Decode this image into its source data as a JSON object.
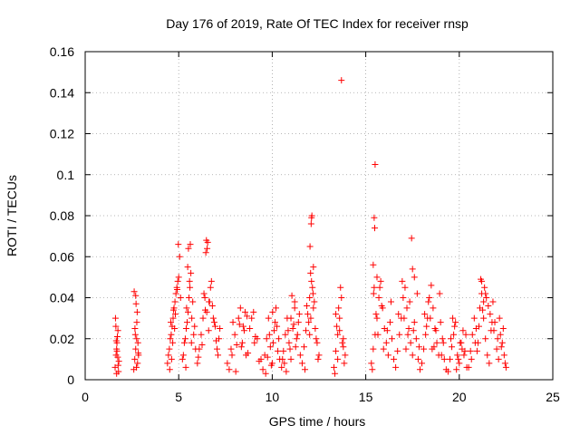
{
  "chart_data": {
    "type": "scatter",
    "title": "Day 176 of 2019, Rate Of TEC Index for receiver rnsp",
    "xlabel": "GPS time / hours",
    "ylabel": "ROTI / TECUs",
    "xlim": [
      0,
      25
    ],
    "ylim": [
      0,
      0.16
    ],
    "xticks": [
      0,
      5,
      10,
      15,
      20,
      25
    ],
    "xtick_labels": [
      "0",
      "5",
      "10",
      "15",
      "20",
      "25"
    ],
    "yticks": [
      0,
      0.02,
      0.04,
      0.06,
      0.08,
      0.1,
      0.12,
      0.14,
      0.16
    ],
    "ytick_labels": [
      "0",
      "0.02",
      "0.04",
      "0.06",
      "0.08",
      "0.1",
      "0.12",
      "0.14",
      "0.16"
    ],
    "grid": true,
    "marker": "+",
    "color": "#ff0000",
    "series": [
      {
        "name": "ROTI",
        "x": [
          1.6,
          1.65,
          1.7,
          1.75,
          1.8,
          1.62,
          1.68,
          1.72,
          1.78,
          1.64,
          1.74,
          1.66,
          1.76,
          1.7,
          1.68,
          2.6,
          2.65,
          2.7,
          2.75,
          2.8,
          2.85,
          2.62,
          2.72,
          2.78,
          2.66,
          2.82,
          2.7,
          2.74,
          2.68,
          2.76,
          2.84,
          4.4,
          4.5,
          4.6,
          4.7,
          4.8,
          4.9,
          5.0,
          5.1,
          4.45,
          4.55,
          4.65,
          4.75,
          4.85,
          4.95,
          5.05,
          4.52,
          4.68,
          4.82,
          4.98,
          4.62,
          4.78,
          4.92,
          4.58,
          4.72,
          5.2,
          5.3,
          5.4,
          5.5,
          5.6,
          5.7,
          5.8,
          5.9,
          5.25,
          5.35,
          5.45,
          5.55,
          5.65,
          5.75,
          5.85,
          5.52,
          5.62,
          5.48,
          5.42,
          5.58,
          5.38,
          5.68,
          6.0,
          6.1,
          6.2,
          6.3,
          6.4,
          6.5,
          6.6,
          6.7,
          6.8,
          6.9,
          7.0,
          7.1,
          7.2,
          6.05,
          6.25,
          6.45,
          6.65,
          6.85,
          7.05,
          6.55,
          6.48,
          6.52,
          6.35,
          6.75,
          6.95,
          7.15,
          6.42,
          6.62,
          7.6,
          7.8,
          8.0,
          8.2,
          8.4,
          8.6,
          8.8,
          9.0,
          9.2,
          9.4,
          7.7,
          7.9,
          8.1,
          8.3,
          8.5,
          8.7,
          8.9,
          9.1,
          9.3,
          7.85,
          8.25,
          8.65,
          9.05,
          8.45,
          8.05,
          8.55,
          8.35,
          9.5,
          9.6,
          9.7,
          9.8,
          9.9,
          10.0,
          10.1,
          10.2,
          10.3,
          10.4,
          9.65,
          9.85,
          10.05,
          10.25,
          9.75,
          9.95,
          10.15,
          10.35,
          10.02,
          10.5,
          10.6,
          10.7,
          10.8,
          10.9,
          11.0,
          11.1,
          11.2,
          11.3,
          11.4,
          11.5,
          10.65,
          10.85,
          11.05,
          11.25,
          11.45,
          10.75,
          10.95,
          11.15,
          11.35,
          11.0,
          11.2,
          10.55,
          11.6,
          11.7,
          11.8,
          11.9,
          12.0,
          12.1,
          12.2,
          12.3,
          12.4,
          12.5,
          11.75,
          11.95,
          12.15,
          12.35,
          12.05,
          12.1,
          12.12,
          12.08,
          11.85,
          12.25,
          12.45,
          12.02,
          12.18,
          12.0,
          12.06,
          12.2,
          13.3,
          13.4,
          13.5,
          13.6,
          13.7,
          13.8,
          13.9,
          13.35,
          13.45,
          13.55,
          13.65,
          13.75,
          13.85,
          13.7,
          13.6,
          13.5,
          13.4,
          13.8,
          15.3,
          15.4,
          15.5,
          15.6,
          15.7,
          15.8,
          15.9,
          16.0,
          16.1,
          16.2,
          16.3,
          16.4,
          16.5,
          15.35,
          15.55,
          15.75,
          15.95,
          16.15,
          16.35,
          15.45,
          15.65,
          15.85,
          15.5,
          15.45,
          15.48,
          15.4,
          15.6,
          15.42,
          16.6,
          16.7,
          16.8,
          16.9,
          17.0,
          17.1,
          17.2,
          17.3,
          17.4,
          17.5,
          17.6,
          17.7,
          17.8,
          17.9,
          16.75,
          16.95,
          17.15,
          17.35,
          17.55,
          17.75,
          17.45,
          17.5,
          17.6,
          17.25,
          17.85,
          17.05,
          18.0,
          18.1,
          18.2,
          18.3,
          18.4,
          18.5,
          18.6,
          18.7,
          18.8,
          18.9,
          19.0,
          19.1,
          19.2,
          19.3,
          18.15,
          18.35,
          18.55,
          18.75,
          18.95,
          19.15,
          18.45,
          18.65,
          18.25,
          19.05,
          19.4,
          19.5,
          19.6,
          19.7,
          19.8,
          19.9,
          20.0,
          20.1,
          20.2,
          20.3,
          20.4,
          19.55,
          19.75,
          19.95,
          20.15,
          20.35,
          19.65,
          19.85,
          20.05,
          20.25,
          20.5,
          20.6,
          20.7,
          20.8,
          20.9,
          21.0,
          21.1,
          21.2,
          21.3,
          21.4,
          21.5,
          21.6,
          21.7,
          21.8,
          21.9,
          22.0,
          22.1,
          22.2,
          22.3,
          22.4,
          22.5,
          20.65,
          20.85,
          21.05,
          21.25,
          21.45,
          21.65,
          21.85,
          22.05,
          22.25,
          22.45,
          21.15,
          21.35,
          21.2,
          21.4,
          21.3,
          21.55,
          22.15,
          22.35,
          21.75,
          20.95
        ],
        "y": [
          0.006,
          0.012,
          0.018,
          0.024,
          0.009,
          0.03,
          0.015,
          0.021,
          0.004,
          0.026,
          0.011,
          0.019,
          0.007,
          0.014,
          0.003,
          0.005,
          0.01,
          0.015,
          0.02,
          0.008,
          0.012,
          0.043,
          0.037,
          0.033,
          0.025,
          0.018,
          0.041,
          0.006,
          0.022,
          0.028,
          0.013,
          0.008,
          0.015,
          0.022,
          0.03,
          0.038,
          0.045,
          0.05,
          0.04,
          0.012,
          0.02,
          0.026,
          0.035,
          0.042,
          0.048,
          0.06,
          0.005,
          0.018,
          0.032,
          0.066,
          0.01,
          0.025,
          0.044,
          0.028,
          0.034,
          0.01,
          0.018,
          0.025,
          0.033,
          0.045,
          0.03,
          0.022,
          0.015,
          0.012,
          0.02,
          0.028,
          0.04,
          0.052,
          0.038,
          0.026,
          0.064,
          0.066,
          0.055,
          0.035,
          0.048,
          0.006,
          0.018,
          0.008,
          0.015,
          0.022,
          0.03,
          0.04,
          0.033,
          0.024,
          0.045,
          0.036,
          0.028,
          0.019,
          0.012,
          0.025,
          0.011,
          0.017,
          0.062,
          0.038,
          0.03,
          0.015,
          0.067,
          0.068,
          0.064,
          0.042,
          0.048,
          0.026,
          0.02,
          0.034,
          0.038,
          0.008,
          0.015,
          0.022,
          0.03,
          0.018,
          0.012,
          0.025,
          0.033,
          0.02,
          0.01,
          0.005,
          0.028,
          0.017,
          0.035,
          0.024,
          0.013,
          0.03,
          0.021,
          0.009,
          0.012,
          0.027,
          0.031,
          0.018,
          0.026,
          0.004,
          0.033,
          0.016,
          0.005,
          0.012,
          0.02,
          0.03,
          0.016,
          0.008,
          0.024,
          0.035,
          0.014,
          0.01,
          0.003,
          0.022,
          0.018,
          0.026,
          0.011,
          0.007,
          0.028,
          0.02,
          0.033,
          0.006,
          0.014,
          0.022,
          0.03,
          0.018,
          0.01,
          0.025,
          0.035,
          0.02,
          0.028,
          0.012,
          0.008,
          0.024,
          0.041,
          0.016,
          0.032,
          0.004,
          0.015,
          0.027,
          0.022,
          0.03,
          0.038,
          0.01,
          0.008,
          0.016,
          0.024,
          0.032,
          0.04,
          0.048,
          0.035,
          0.025,
          0.018,
          0.012,
          0.005,
          0.028,
          0.045,
          0.02,
          0.052,
          0.079,
          0.08,
          0.076,
          0.036,
          0.038,
          0.01,
          0.065,
          0.042,
          0.022,
          0.03,
          0.055,
          0.006,
          0.014,
          0.022,
          0.03,
          0.04,
          0.02,
          0.012,
          0.003,
          0.026,
          0.035,
          0.045,
          0.018,
          0.008,
          0.146,
          0.024,
          0.01,
          0.032,
          0.016,
          0.008,
          0.015,
          0.022,
          0.03,
          0.04,
          0.048,
          0.035,
          0.025,
          0.018,
          0.012,
          0.028,
          0.02,
          0.01,
          0.005,
          0.032,
          0.045,
          0.015,
          0.024,
          0.038,
          0.045,
          0.022,
          0.036,
          0.105,
          0.079,
          0.074,
          0.056,
          0.05,
          0.042,
          0.006,
          0.014,
          0.022,
          0.03,
          0.04,
          0.045,
          0.035,
          0.025,
          0.018,
          0.012,
          0.028,
          0.02,
          0.01,
          0.005,
          0.032,
          0.048,
          0.015,
          0.038,
          0.024,
          0.042,
          0.069,
          0.054,
          0.05,
          0.022,
          0.016,
          0.03,
          0.008,
          0.015,
          0.022,
          0.03,
          0.04,
          0.046,
          0.035,
          0.025,
          0.018,
          0.012,
          0.028,
          0.02,
          0.01,
          0.005,
          0.032,
          0.038,
          0.015,
          0.024,
          0.042,
          0.018,
          0.03,
          0.016,
          0.026,
          0.012,
          0.004,
          0.01,
          0.016,
          0.022,
          0.028,
          0.012,
          0.008,
          0.018,
          0.024,
          0.014,
          0.006,
          0.02,
          0.026,
          0.01,
          0.015,
          0.022,
          0.03,
          0.005,
          0.018,
          0.012,
          0.006,
          0.014,
          0.022,
          0.03,
          0.025,
          0.018,
          0.035,
          0.042,
          0.03,
          0.02,
          0.012,
          0.008,
          0.024,
          0.038,
          0.028,
          0.015,
          0.01,
          0.022,
          0.018,
          0.012,
          0.006,
          0.01,
          0.018,
          0.026,
          0.034,
          0.04,
          0.032,
          0.024,
          0.02,
          0.016,
          0.008,
          0.049,
          0.045,
          0.048,
          0.042,
          0.038,
          0.036,
          0.03,
          0.025,
          0.028,
          0.014
        ]
      }
    ]
  }
}
